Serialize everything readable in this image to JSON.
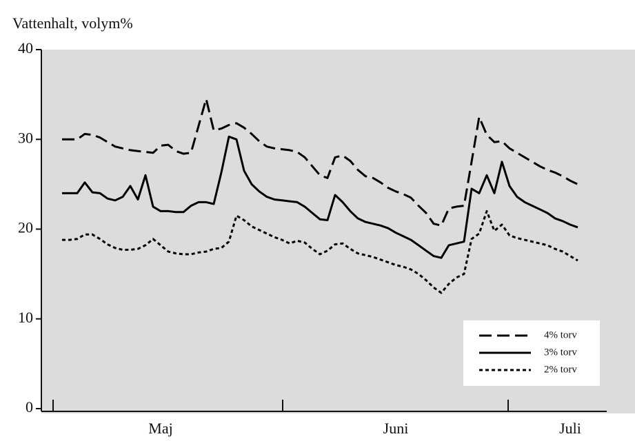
{
  "chart_data": {
    "type": "line",
    "y_label": "Vattenhalt, volym%",
    "categories": [
      null,
      null,
      null,
      null,
      null,
      null,
      null,
      null,
      null,
      null,
      null,
      null,
      null,
      "Maj",
      null,
      null,
      null,
      null,
      null,
      null,
      null,
      null,
      null,
      null,
      null,
      null,
      null,
      null,
      null,
      null,
      null,
      null,
      null,
      null,
      null,
      null,
      null,
      null,
      null,
      null,
      null,
      null,
      null,
      null,
      "Juni",
      null,
      null,
      null,
      null,
      null,
      null,
      null,
      null,
      null,
      null,
      null,
      null,
      null,
      null,
      null,
      null,
      null,
      null,
      null,
      null,
      null,
      null,
      "Juli",
      null
    ],
    "series": [
      {
        "name": "4% torv",
        "color": "#000000",
        "dash": "dashed",
        "values": [
          30,
          30,
          30,
          30.6,
          30.5,
          30.2,
          29.7,
          29.2,
          29,
          28.8,
          28.7,
          28.6,
          28.5,
          29.3,
          29.4,
          28.7,
          28.4,
          28.5,
          31.5,
          34.5,
          31,
          31.2,
          31.6,
          31.8,
          31.3,
          30.6,
          29.8,
          29.2,
          29,
          28.9,
          28.8,
          28.6,
          28,
          27,
          26,
          25.7,
          28,
          28.2,
          27.6,
          26.6,
          25.9,
          25.7,
          25.2,
          24.6,
          24.2,
          23.9,
          23.5,
          22.6,
          21.8,
          20.6,
          20.4,
          22.3,
          22.5,
          22.6,
          27.5,
          32.5,
          30.5,
          29.7,
          29.8,
          29,
          28.5,
          28,
          27.5,
          27,
          26.6,
          26.3,
          25.9,
          25.4,
          25
        ]
      },
      {
        "name": "3% torv",
        "color": "#000000",
        "dash": "solid",
        "values": [
          24,
          24,
          24,
          25.2,
          24.1,
          24,
          23.4,
          23.2,
          23.6,
          24.8,
          23.3,
          26,
          22.5,
          22,
          22,
          21.9,
          21.9,
          22.6,
          23,
          23,
          22.8,
          26.3,
          30.3,
          30,
          26.5,
          25,
          24.2,
          23.6,
          23.3,
          23.2,
          23.1,
          23,
          22.5,
          21.8,
          21.1,
          21,
          23.8,
          23,
          22,
          21.2,
          20.8,
          20.6,
          20.4,
          20.1,
          19.6,
          19.2,
          18.8,
          18.2,
          17.6,
          17,
          16.8,
          18.2,
          18.4,
          18.6,
          24.5,
          24,
          26,
          24,
          27.5,
          24.8,
          23.6,
          23,
          22.6,
          22.2,
          21.8,
          21.2,
          20.9,
          20.5,
          20.2
        ]
      },
      {
        "name": "2% torv",
        "color": "#000000",
        "dash": "dotted",
        "values": [
          18.8,
          18.8,
          18.9,
          19.4,
          19.4,
          18.9,
          18.3,
          17.9,
          17.7,
          17.7,
          17.8,
          18.2,
          18.9,
          18.2,
          17.5,
          17.3,
          17.2,
          17.2,
          17.4,
          17.5,
          17.8,
          17.9,
          18.6,
          21.5,
          21,
          20.3,
          19.9,
          19.5,
          19.1,
          18.8,
          18.4,
          18.7,
          18.5,
          17.8,
          17.2,
          17.6,
          18.3,
          18.4,
          17.8,
          17.3,
          17.1,
          16.9,
          16.6,
          16.3,
          16,
          15.8,
          15.5,
          15,
          14.3,
          13.5,
          12.9,
          13.9,
          14.6,
          15,
          18.9,
          19.5,
          22,
          19.8,
          20.5,
          19.3,
          19,
          18.8,
          18.6,
          18.4,
          18.2,
          17.8,
          17.5,
          17,
          16.5
        ]
      }
    ],
    "ylim": [
      0,
      40
    ],
    "yticks": [
      0,
      10,
      20,
      30,
      40
    ],
    "grid": false,
    "legend": "lower right"
  }
}
